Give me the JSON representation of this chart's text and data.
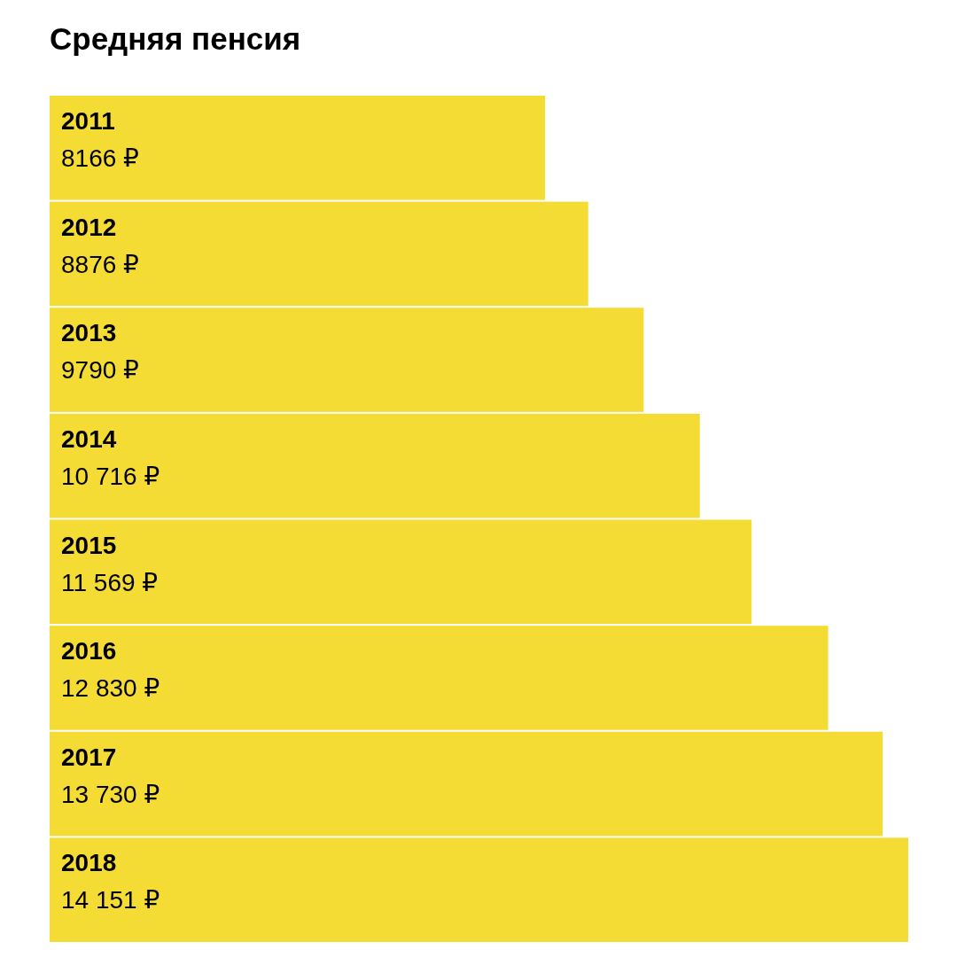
{
  "chart_data": {
    "type": "bar",
    "orientation": "horizontal",
    "title": "Средняя пенсия",
    "categories": [
      "2011",
      "2012",
      "2013",
      "2014",
      "2015",
      "2016",
      "2017",
      "2018"
    ],
    "values": [
      8166,
      8876,
      9790,
      10716,
      11569,
      12830,
      13730,
      14151
    ],
    "value_labels": [
      "8166 ₽",
      "8876 ₽",
      "9790 ₽",
      "10 716 ₽",
      "11 569 ₽",
      "12 830 ₽",
      "13 730 ₽",
      "14 151 ₽"
    ],
    "color": "#f5dc35"
  }
}
